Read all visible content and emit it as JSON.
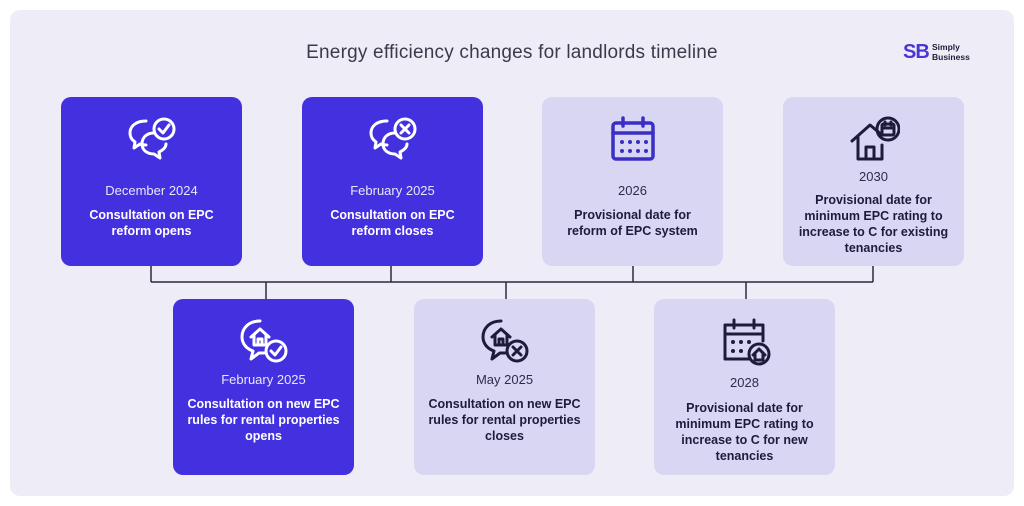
{
  "title": "Energy efficiency changes for landlords timeline",
  "logo": {
    "mark": "SB",
    "line1": "Simply",
    "line2": "Business"
  },
  "top_cards": [
    {
      "date": "December 2024",
      "desc": "Consultation on EPC reform opens",
      "icon": "speech-bubbles-check-icon"
    },
    {
      "date": "February 2025",
      "desc": "Consultation on EPC reform closes",
      "icon": "speech-bubbles-cross-icon"
    },
    {
      "date": "2026",
      "desc": "Provisional date for reform of EPC system",
      "icon": "calendar-icon"
    },
    {
      "date": "2030",
      "desc": "Provisional date for minimum EPC rating to increase to C for existing tenancies",
      "icon": "house-calendar-icon"
    }
  ],
  "bottom_cards": [
    {
      "date": "February 2025",
      "desc": "Consultation on new EPC rules for rental properties opens",
      "icon": "house-bubble-check-icon"
    },
    {
      "date": "May 2025",
      "desc": "Consultation on new EPC rules for rental properties closes",
      "icon": "house-bubble-cross-icon"
    },
    {
      "date": "2028",
      "desc": "Provisional date for minimum EPC rating to increase to C for new tenancies",
      "icon": "calendar-house-icon"
    }
  ],
  "colors": {
    "dark_card": "#4331df",
    "light_card": "#d9d6f4",
    "line": "#2a2a3a",
    "accent_icon": "#3a2fc4"
  }
}
